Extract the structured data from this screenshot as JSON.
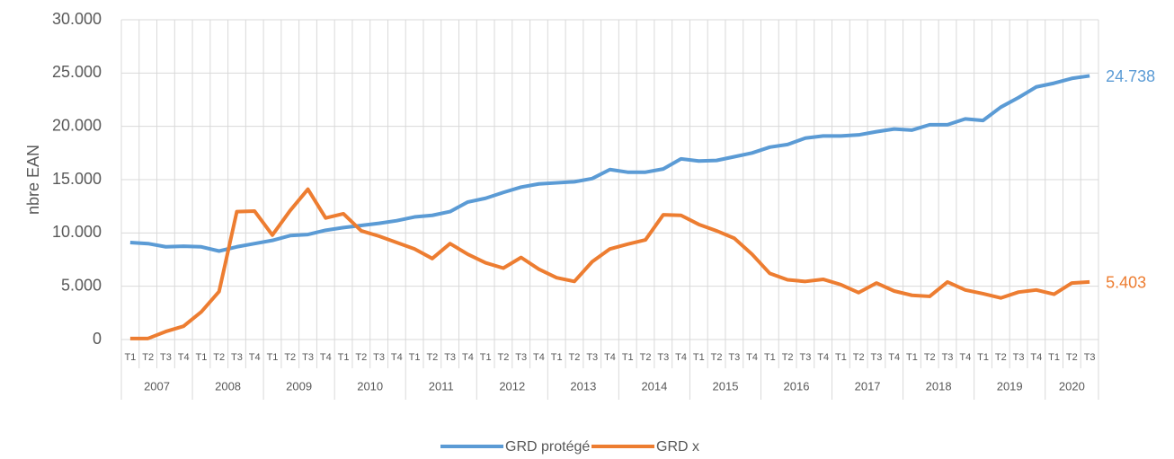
{
  "chart_data": {
    "type": "line",
    "ylabel": "nbre EAN",
    "categories": [
      "T1",
      "T2",
      "T3",
      "T4",
      "T1",
      "T2",
      "T3",
      "T4",
      "T1",
      "T2",
      "T3",
      "T4",
      "T1",
      "T2",
      "T3",
      "T4",
      "T1",
      "T2",
      "T3",
      "T4",
      "T1",
      "T2",
      "T3",
      "T4",
      "T1",
      "T2",
      "T3",
      "T4",
      "T1",
      "T2",
      "T3",
      "T4",
      "T1",
      "T2",
      "T3",
      "T4",
      "T1",
      "T2",
      "T3",
      "T4",
      "T1",
      "T2",
      "T3",
      "T4",
      "T1",
      "T2",
      "T3",
      "T4",
      "T1",
      "T2",
      "T3",
      "T4",
      "T1",
      "T2",
      "T3"
    ],
    "years": [
      "2007",
      "2008",
      "2009",
      "2010",
      "2011",
      "2012",
      "2013",
      "2014",
      "2015",
      "2016",
      "2017",
      "2018",
      "2019",
      "2020"
    ],
    "series": [
      {
        "name": "GRD protégé",
        "color": "#5b9bd5",
        "values": [
          9100,
          9000,
          8700,
          8750,
          8700,
          8300,
          8700,
          9000,
          9300,
          9750,
          9850,
          10250,
          10500,
          10700,
          10900,
          11150,
          11500,
          11650,
          12000,
          12900,
          13250,
          13800,
          14300,
          14600,
          14700,
          14800,
          15100,
          15950,
          15700,
          15700,
          16000,
          16950,
          16750,
          16800,
          17150,
          17500,
          18050,
          18300,
          18900,
          19100,
          19100,
          19200,
          19500,
          19750,
          19650,
          20150,
          20150,
          20700,
          20550,
          21800,
          22700,
          23700,
          24050,
          24500,
          24738
        ],
        "value_labels": [
          null,
          null,
          null,
          null,
          null,
          null,
          null,
          null,
          null,
          null,
          null,
          null,
          null,
          null,
          null,
          null,
          null,
          null,
          null,
          null,
          null,
          null,
          null,
          null,
          null,
          null,
          null,
          null,
          null,
          null,
          null,
          null,
          null,
          null,
          null,
          null,
          null,
          null,
          null,
          null,
          null,
          null,
          null,
          null,
          null,
          null,
          null,
          null,
          null,
          null,
          null,
          null,
          null,
          null,
          "24.738"
        ]
      },
      {
        "name": "GRD x",
        "color": "#ed7d31",
        "values": [
          100,
          100,
          750,
          1250,
          2600,
          4500,
          12000,
          12050,
          9800,
          12100,
          14100,
          11400,
          11800,
          10200,
          9700,
          9100,
          8500,
          7600,
          9000,
          8000,
          7200,
          6700,
          7700,
          6600,
          5800,
          5450,
          7300,
          8500,
          8950,
          9350,
          11700,
          11650,
          10800,
          10200,
          9500,
          8000,
          6200,
          5600,
          5450,
          5650,
          5150,
          4400,
          5300,
          4550,
          4150,
          4050,
          5400,
          4650,
          4300,
          3900,
          4450,
          4650,
          4250,
          5300,
          5403
        ],
        "value_labels": [
          null,
          null,
          null,
          null,
          null,
          null,
          null,
          null,
          null,
          null,
          null,
          null,
          null,
          null,
          null,
          null,
          null,
          null,
          null,
          null,
          null,
          null,
          null,
          null,
          null,
          null,
          null,
          null,
          null,
          null,
          null,
          null,
          null,
          null,
          null,
          null,
          null,
          null,
          null,
          null,
          null,
          null,
          null,
          null,
          null,
          null,
          null,
          null,
          null,
          null,
          null,
          null,
          null,
          null,
          "5.403"
        ]
      }
    ],
    "ylim": [
      0,
      30000
    ],
    "yticks": [
      0,
      {
        "value": 5000,
        "label": "5.000"
      },
      {
        "value": 10000,
        "label": "10.000"
      },
      {
        "value": 15000,
        "label": "15.000"
      },
      {
        "value": 20000,
        "label": "20.000"
      },
      {
        "value": 25000,
        "label": "25.000"
      },
      {
        "value": 30000,
        "label": "30.000"
      }
    ],
    "grid": true,
    "legend": "bottom"
  }
}
